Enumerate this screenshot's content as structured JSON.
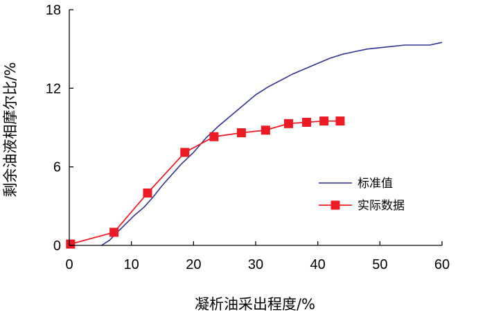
{
  "chart_data": {
    "type": "line",
    "xlabel": "凝析油采出程度/%",
    "ylabel": "剩余油液相摩尔比/%",
    "xlim": [
      0,
      60
    ],
    "ylim": [
      0,
      18
    ],
    "x_ticks": [
      "0",
      "10",
      "20",
      "30",
      "40",
      "50",
      "60"
    ],
    "y_ticks": [
      "0",
      "6",
      "12",
      "18"
    ],
    "grid": false,
    "legend_position": "right",
    "series": [
      {
        "name": "标准值",
        "color": "#2e3192",
        "marker": "none",
        "x": [
          5.2,
          6.5,
          7.5,
          9,
          10.5,
          12,
          13.5,
          15,
          16.5,
          18,
          20,
          22,
          24,
          26,
          28,
          30,
          32,
          34,
          36,
          38,
          40,
          42,
          44,
          46,
          48,
          50,
          52,
          54,
          56,
          58,
          60
        ],
        "y": [
          0,
          0.4,
          0.9,
          1.6,
          2.3,
          2.9,
          3.7,
          4.6,
          5.4,
          6.2,
          7.1,
          8.2,
          9.1,
          9.9,
          10.7,
          11.5,
          12.1,
          12.6,
          13.1,
          13.5,
          13.9,
          14.3,
          14.6,
          14.8,
          15.0,
          15.1,
          15.2,
          15.3,
          15.3,
          15.3,
          15.5
        ]
      },
      {
        "name": "实际数据",
        "color": "#ed1c24",
        "marker": "square",
        "x": [
          0.2,
          7.2,
          12.6,
          18.6,
          23.3,
          27.7,
          31.6,
          35.3,
          38.2,
          41.0,
          43.6
        ],
        "y": [
          0.1,
          1.0,
          4.0,
          7.1,
          8.3,
          8.6,
          8.8,
          9.3,
          9.4,
          9.5,
          9.5
        ]
      }
    ]
  }
}
